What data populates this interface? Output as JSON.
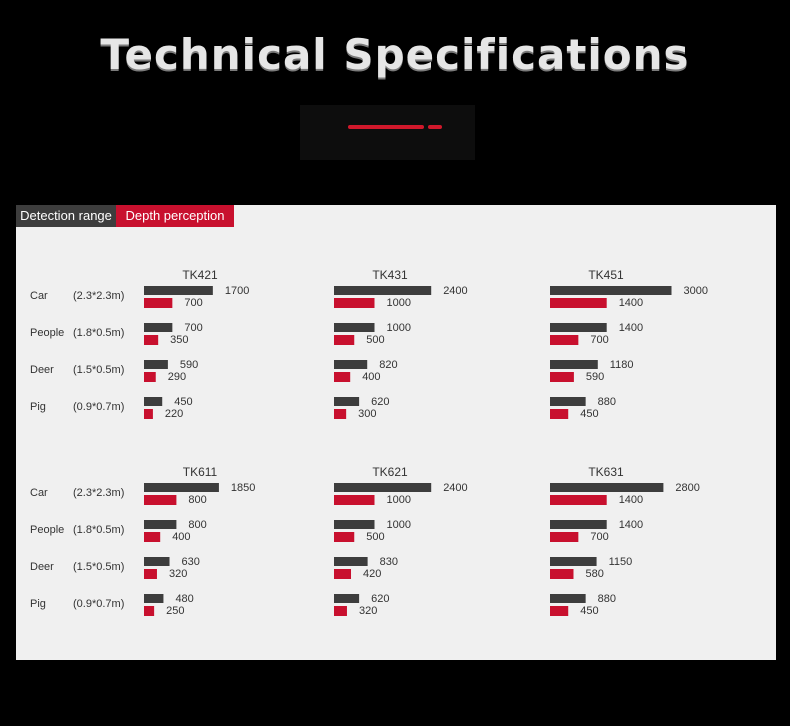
{
  "title": "Technical Specifications",
  "legend": {
    "detection": "Detection range",
    "depth": "Depth perception"
  },
  "colors": {
    "detection": "#3d3d3d",
    "depth": "#c8102e",
    "panel": "#f0f0f0",
    "accent": "#d0182b"
  },
  "chart_data": [
    {
      "type": "bar",
      "title": "TK421",
      "categories": [
        "Car",
        "People",
        "Deer",
        "Pig"
      ],
      "sizes": [
        "(2.3*2.3m)",
        "(1.8*0.5m)",
        "(1.5*0.5m)",
        "(0.9*0.7m)"
      ],
      "series": [
        {
          "name": "Detection range",
          "values": [
            1700,
            700,
            590,
            450
          ]
        },
        {
          "name": "Depth perception",
          "values": [
            700,
            350,
            290,
            220
          ]
        }
      ]
    },
    {
      "type": "bar",
      "title": "TK431",
      "categories": [
        "Car",
        "People",
        "Deer",
        "Pig"
      ],
      "series": [
        {
          "name": "Detection range",
          "values": [
            2400,
            1000,
            820,
            620
          ]
        },
        {
          "name": "Depth perception",
          "values": [
            1000,
            500,
            400,
            300
          ]
        }
      ]
    },
    {
      "type": "bar",
      "title": "TK451",
      "categories": [
        "Car",
        "People",
        "Deer",
        "Pig"
      ],
      "series": [
        {
          "name": "Detection range",
          "values": [
            3000,
            1400,
            1180,
            880
          ]
        },
        {
          "name": "Depth perception",
          "values": [
            1400,
            700,
            590,
            450
          ]
        }
      ]
    },
    {
      "type": "bar",
      "title": "TK611",
      "categories": [
        "Car",
        "People",
        "Deer",
        "Pig"
      ],
      "sizes": [
        "(2.3*2.3m)",
        "(1.8*0.5m)",
        "(1.5*0.5m)",
        "(0.9*0.7m)"
      ],
      "series": [
        {
          "name": "Detection range",
          "values": [
            1850,
            800,
            630,
            480
          ]
        },
        {
          "name": "Depth perception",
          "values": [
            800,
            400,
            320,
            250
          ]
        }
      ]
    },
    {
      "type": "bar",
      "title": "TK621",
      "categories": [
        "Car",
        "People",
        "Deer",
        "Pig"
      ],
      "series": [
        {
          "name": "Detection range",
          "values": [
            2400,
            1000,
            830,
            620
          ]
        },
        {
          "name": "Depth perception",
          "values": [
            1000,
            500,
            420,
            320
          ]
        }
      ]
    },
    {
      "type": "bar",
      "title": "TK631",
      "categories": [
        "Car",
        "People",
        "Deer",
        "Pig"
      ],
      "series": [
        {
          "name": "Detection range",
          "values": [
            2800,
            1400,
            1150,
            880
          ]
        },
        {
          "name": "Depth perception",
          "values": [
            1400,
            700,
            580,
            450
          ]
        }
      ]
    }
  ]
}
